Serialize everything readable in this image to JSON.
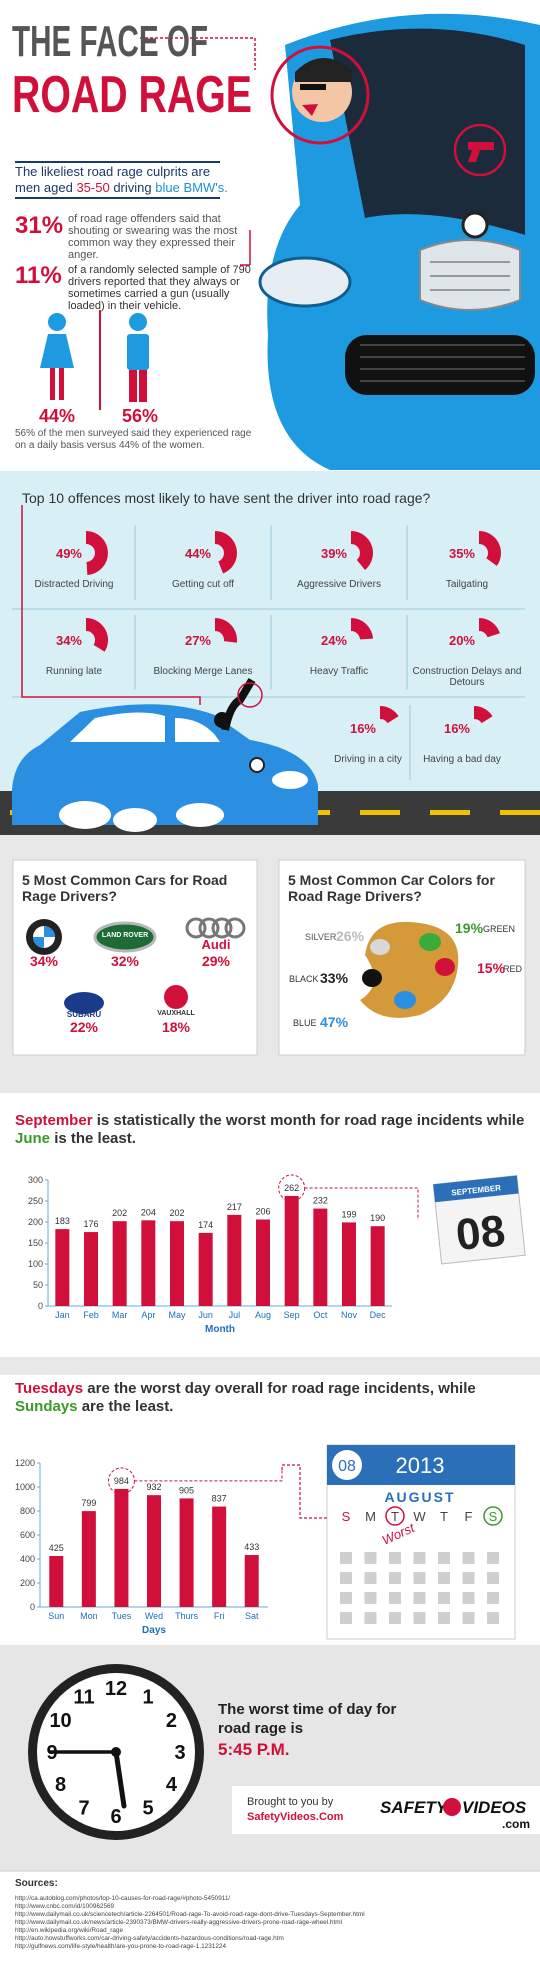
{
  "header": {
    "title": [
      "THE FACE OF",
      "ROAD RAGE"
    ],
    "intro": [
      "The likeliest road rage culprits are",
      "men aged",
      "35-50",
      "driving",
      "blue BMW's."
    ]
  },
  "stats": [
    {
      "figure": "31%",
      "text": "of road rage offenders said that shouting or swearing was the most common way they expressed their anger."
    },
    {
      "figure": "11%",
      "text": "of a randomly selected sample of 790 drivers reported that they always or sometimes carried a gun (usually loaded) in their vehicle."
    }
  ],
  "gender": {
    "women": "44%",
    "men": "56%",
    "note": "56% of the men surveyed said they experienced rage on a daily basis versus 44% of the women."
  },
  "offences": {
    "type": "donut-wedge",
    "title": "Top 10 offences most likely to have sent the driver into road rage?",
    "categories": [
      "Distracted Driving",
      "Getting cut off",
      "Aggressive Drivers",
      "Tailgating",
      "Running late",
      "Blocking Merge Lanes",
      "Heavy Traffic",
      "Construction Delays and Detours",
      "Driving in a city",
      "Having a bad day"
    ],
    "values": [
      49,
      44,
      39,
      35,
      34,
      27,
      24,
      20,
      16,
      16
    ],
    "value_labels": [
      "49%",
      "44%",
      "39%",
      "35%",
      "34%",
      "27%",
      "24%",
      "20%",
      "16%",
      "16%"
    ],
    "color": "#d0103a"
  },
  "cars": {
    "title": "5 Most Common Cars for Road Rage Drivers?",
    "items": [
      {
        "brand": "BMW",
        "share": "34%"
      },
      {
        "brand": "LAND ROVER",
        "share": "32%"
      },
      {
        "brand": "Audi",
        "share": "29%"
      },
      {
        "brand": "SUBARU",
        "share": "22%"
      },
      {
        "brand": "VAUXHALL",
        "share": "18%"
      }
    ]
  },
  "colors": {
    "title": "5 Most Common Car Colors for Road Rage Drivers?",
    "items": [
      {
        "name": "SILVER",
        "share": "26%"
      },
      {
        "name": "GREEN",
        "share": "19%"
      },
      {
        "name": "BLACK",
        "share": "33%"
      },
      {
        "name": "RED",
        "share": "15%"
      },
      {
        "name": "BLUE",
        "share": "47%"
      }
    ]
  },
  "chart_data": [
    {
      "type": "bar",
      "title": [
        "September",
        "is statistically the worst month for road rage incidents while",
        "June",
        "is the least."
      ],
      "categories": [
        "Jan",
        "Feb",
        "Mar",
        "Apr",
        "May",
        "Jun",
        "Jul",
        "Aug",
        "Sep",
        "Oct",
        "Nov",
        "Dec"
      ],
      "values": [
        183,
        176,
        202,
        204,
        202,
        174,
        217,
        206,
        262,
        232,
        199,
        190
      ],
      "color": "#d0103a",
      "xlabel": "Month",
      "ylim": [
        0,
        300
      ],
      "yticks": [
        0,
        50,
        100,
        150,
        200,
        250,
        300
      ]
    },
    {
      "type": "bar",
      "title": [
        "Tuesdays",
        "are the worst day overall for road rage incidents, while",
        "Sundays",
        "are the least."
      ],
      "categories": [
        "Sun",
        "Mon",
        "Tues",
        "Wed",
        "Thurs",
        "Fri",
        "Sat"
      ],
      "values": [
        425,
        799,
        984,
        932,
        905,
        837,
        433
      ],
      "color": "#d0103a",
      "xlabel": "Days",
      "ylim": [
        0,
        1200
      ],
      "yticks": [
        0,
        200,
        400,
        600,
        800,
        1000,
        1200
      ]
    }
  ],
  "calendars": {
    "month_page": {
      "month": "SEPTEMBER",
      "day": "08"
    },
    "week_page": {
      "day": "08",
      "year": "2013",
      "month": "AUGUST",
      "weekdays": [
        "S",
        "M",
        "T",
        "W",
        "T",
        "F",
        "S"
      ],
      "note": "Worst"
    }
  },
  "clock": {
    "numbers": [
      "12",
      "1",
      "2",
      "3",
      "4",
      "5",
      "6",
      "7",
      "8",
      "9",
      "10",
      "11"
    ]
  },
  "time": {
    "text": "The worst time of day for road rage is",
    "value": "5:45 P.M."
  },
  "credit": {
    "lead": "Brought to you by",
    "site": "SafetyVideos.Com",
    "logo": [
      "SAFETY",
      "VIDEOS",
      ".com"
    ]
  },
  "sources": {
    "title": "Sources:",
    "items": [
      "http://ca.autoblog.com/photos/top-10-causes-for-road-rage/#photo-5450911/",
      "http://www.cnbc.com/id/100962569",
      "http://www.dailymail.co.uk/sciencetech/article-2264501/Road-rage-To-avoid-road-rage-dont-drive-Tuesdays-September.html",
      "http://www.dailymail.co.uk/news/article-2390373/BMW-drivers-really-aggressive-drivers-prone-road-rage-wheel.html",
      "http://en.wikipedia.org/wiki/Road_rage",
      "http://auto.howstuffworks.com/car-driving-safety/accidents-hazardous-conditions/road-rage.htm",
      "http://gulfnews.com/life-style/health/are-you-prone-to-road-rage-1.1231224"
    ]
  }
}
